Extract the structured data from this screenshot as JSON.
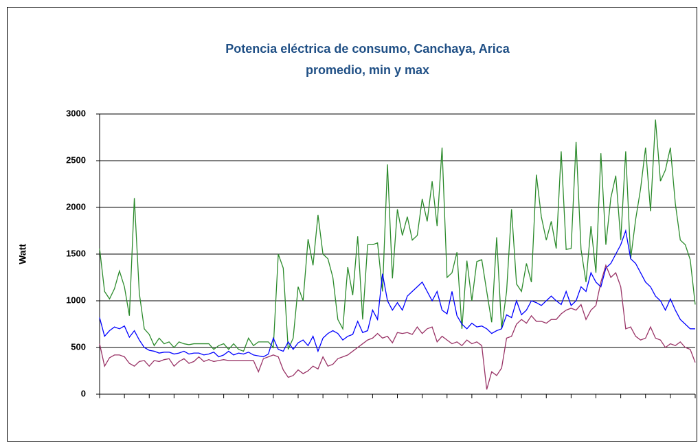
{
  "chart_data": {
    "type": "line",
    "title": "Potencia eléctrica de consumo, Canchaya, Arica",
    "subtitle": "promedio, min y max",
    "y_label": "Watt",
    "ylim": [
      0,
      3000
    ],
    "yticks": [
      0,
      500,
      1000,
      1500,
      2000,
      2500,
      3000
    ],
    "grid": true,
    "categories": [
      null,
      null,
      null,
      null,
      null,
      null,
      null,
      null,
      null,
      null,
      null,
      null,
      null,
      null,
      null,
      null,
      null,
      null,
      null,
      null,
      null,
      null,
      null,
      null,
      null,
      null,
      null,
      null,
      null,
      null,
      null,
      null,
      null,
      null,
      null,
      null,
      null,
      null,
      null,
      null,
      null,
      null,
      null,
      null,
      null,
      null,
      null,
      null,
      null,
      null,
      null,
      null,
      null,
      null,
      null,
      null,
      null,
      null,
      null,
      null,
      null,
      null,
      null,
      null,
      null,
      null,
      null,
      null,
      null,
      null,
      null,
      null,
      null,
      null,
      null,
      null,
      null,
      null,
      null,
      null,
      null,
      null,
      null,
      null,
      null,
      null,
      null,
      null,
      null,
      null,
      null,
      null,
      null,
      null,
      null,
      null,
      null,
      null,
      null,
      null,
      null,
      null,
      null,
      null,
      null,
      null,
      null,
      null,
      null,
      null,
      null,
      null,
      null,
      null,
      null,
      null,
      null,
      null,
      null,
      null,
      null
    ],
    "series": [
      {
        "color": "#2b8a2b",
        "values": [
          1560,
          1100,
          1020,
          1130,
          1320,
          1150,
          840,
          2100,
          1080,
          700,
          640,
          520,
          600,
          540,
          560,
          500,
          560,
          540,
          530,
          540,
          540,
          540,
          540,
          480,
          520,
          540,
          480,
          540,
          480,
          460,
          600,
          520,
          560,
          560,
          560,
          500,
          1500,
          1350,
          480,
          600,
          1150,
          1000,
          1660,
          1380,
          1920,
          1500,
          1450,
          1250,
          800,
          700,
          1360,
          1060,
          1690,
          800,
          1600,
          1600,
          1620,
          1100,
          2460,
          1240,
          1980,
          1700,
          1900,
          1650,
          1700,
          2090,
          1850,
          2280,
          1800,
          2640,
          1250,
          1300,
          1520,
          700,
          1430,
          1000,
          1420,
          1440,
          1100,
          770,
          1680,
          700,
          1100,
          1980,
          1180,
          1100,
          1400,
          1200,
          2350,
          1900,
          1650,
          1850,
          1560,
          2600,
          1550,
          1560,
          2700,
          1550,
          1200,
          1800,
          1300,
          2580,
          1600,
          2100,
          2340,
          1650,
          2600,
          1450,
          1870,
          2200,
          2640,
          1960,
          2940,
          2280,
          2400,
          2640,
          2040,
          1650,
          1600,
          1440,
          960
        ]
      },
      {
        "color": "#0000ff",
        "values": [
          820,
          620,
          680,
          720,
          700,
          730,
          610,
          680,
          580,
          500,
          470,
          460,
          440,
          450,
          450,
          430,
          440,
          460,
          430,
          440,
          440,
          420,
          430,
          450,
          400,
          420,
          460,
          420,
          440,
          430,
          450,
          420,
          410,
          400,
          430,
          600,
          480,
          460,
          560,
          480,
          550,
          580,
          520,
          620,
          460,
          600,
          650,
          680,
          650,
          580,
          620,
          640,
          780,
          660,
          680,
          900,
          800,
          1290,
          1000,
          900,
          980,
          900,
          1050,
          1100,
          1150,
          1200,
          1100,
          1000,
          1100,
          900,
          860,
          1100,
          840,
          750,
          700,
          760,
          720,
          730,
          700,
          650,
          680,
          700,
          850,
          820,
          1000,
          850,
          900,
          1000,
          980,
          950,
          1000,
          1050,
          1000,
          960,
          1100,
          950,
          1000,
          1150,
          1100,
          1300,
          1200,
          1150,
          1350,
          1400,
          1500,
          1600,
          1750,
          1450,
          1400,
          1300,
          1200,
          1150,
          1050,
          1000,
          900,
          1020,
          900,
          800,
          750,
          700,
          700
        ]
      },
      {
        "color": "#993366",
        "values": [
          540,
          300,
          390,
          420,
          420,
          400,
          330,
          300,
          350,
          360,
          300,
          360,
          350,
          370,
          380,
          300,
          350,
          380,
          330,
          350,
          400,
          350,
          370,
          350,
          360,
          370,
          360,
          360,
          360,
          360,
          360,
          360,
          240,
          380,
          400,
          420,
          400,
          260,
          180,
          200,
          260,
          220,
          250,
          300,
          270,
          400,
          300,
          320,
          380,
          400,
          420,
          460,
          500,
          540,
          580,
          600,
          650,
          600,
          620,
          550,
          660,
          650,
          660,
          640,
          720,
          650,
          700,
          720,
          560,
          620,
          580,
          540,
          560,
          520,
          580,
          540,
          560,
          520,
          50,
          240,
          200,
          280,
          600,
          620,
          750,
          800,
          760,
          840,
          780,
          780,
          760,
          800,
          800,
          860,
          900,
          920,
          900,
          960,
          800,
          900,
          950,
          1200,
          1380,
          1250,
          1300,
          1150,
          700,
          720,
          620,
          580,
          600,
          720,
          600,
          580,
          500,
          540,
          520,
          560,
          500,
          480,
          340
        ]
      }
    ]
  }
}
